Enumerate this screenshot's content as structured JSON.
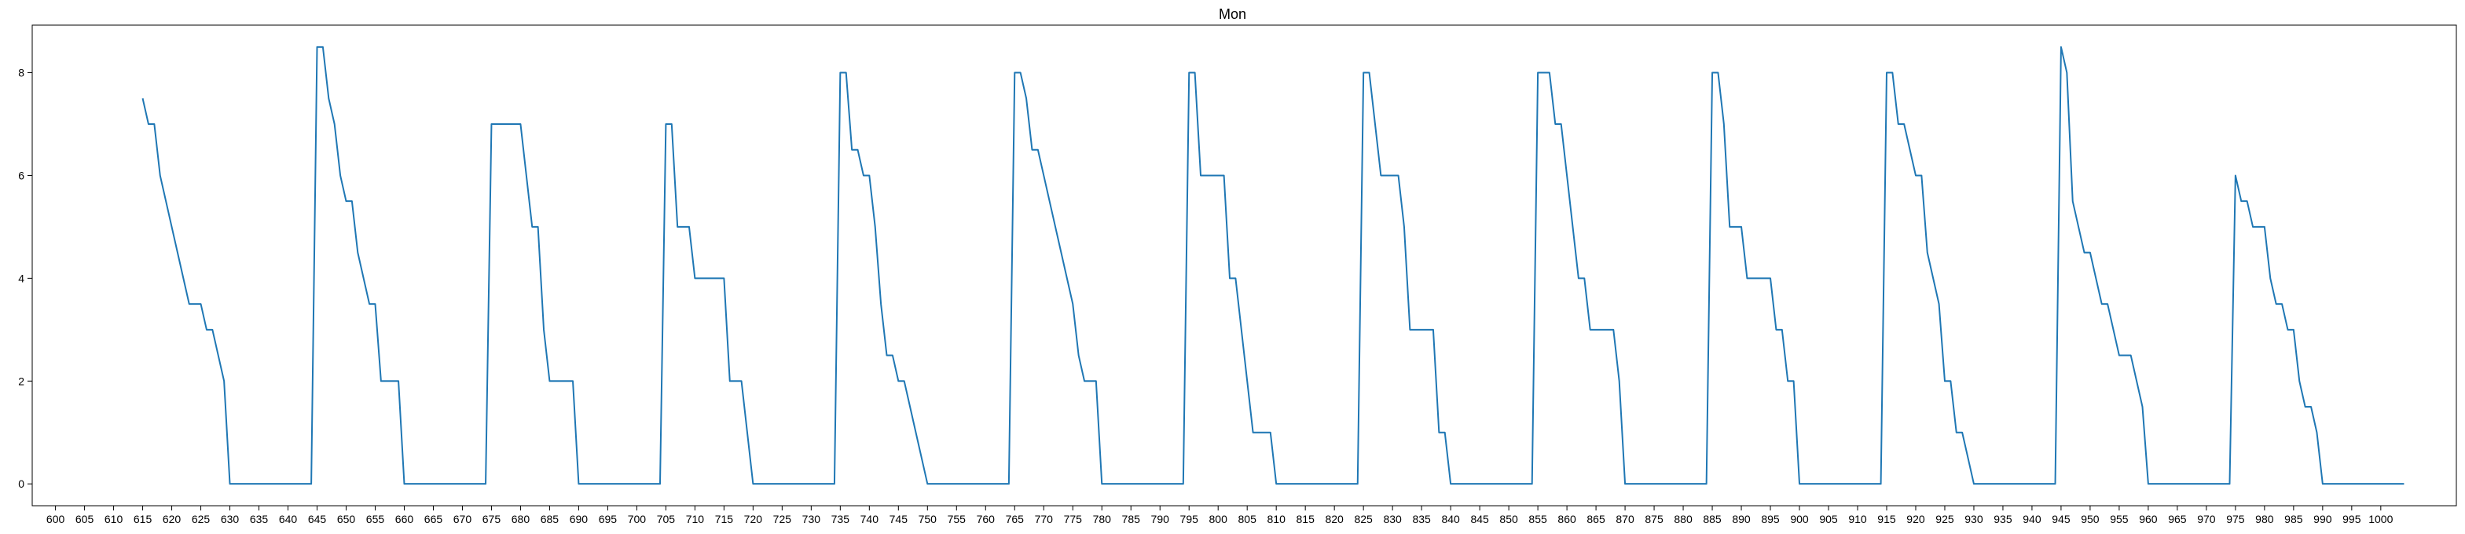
{
  "chart_data": {
    "type": "line",
    "title": "Mon",
    "xlabel": "",
    "ylabel": "",
    "xlim": [
      596,
      1013
    ],
    "ylim": [
      -0.425,
      8.925
    ],
    "xticks": [
      600,
      605,
      610,
      615,
      620,
      625,
      630,
      635,
      640,
      645,
      650,
      655,
      660,
      665,
      670,
      675,
      680,
      685,
      690,
      695,
      700,
      705,
      710,
      715,
      720,
      725,
      730,
      735,
      740,
      745,
      750,
      755,
      760,
      765,
      770,
      775,
      780,
      785,
      790,
      795,
      800,
      805,
      810,
      815,
      820,
      825,
      830,
      835,
      840,
      845,
      850,
      855,
      860,
      865,
      870,
      875,
      880,
      885,
      890,
      895,
      900,
      905,
      910,
      915,
      920,
      925,
      930,
      935,
      940,
      945,
      950,
      955,
      960,
      965,
      970,
      975,
      980,
      985,
      990,
      995,
      1000
    ],
    "yticks": [
      0,
      2,
      4,
      6,
      8
    ],
    "grid": false,
    "legend": "none",
    "series": [
      {
        "color": "#1f77b4",
        "x": [
          615,
          616,
          617,
          618,
          619,
          620,
          621,
          622,
          623,
          624,
          625,
          626,
          627,
          628,
          629,
          630,
          631,
          632,
          633,
          634,
          635,
          636,
          637,
          638,
          639,
          640,
          641,
          642,
          643,
          644,
          645,
          646,
          647,
          648,
          649,
          650,
          651,
          652,
          653,
          654,
          655,
          656,
          657,
          658,
          659,
          660,
          661,
          662,
          663,
          664,
          665,
          666,
          667,
          668,
          669,
          670,
          671,
          672,
          673,
          674,
          675,
          676,
          677,
          678,
          679,
          680,
          681,
          682,
          683,
          684,
          685,
          686,
          687,
          688,
          689,
          690,
          691,
          692,
          693,
          694,
          695,
          696,
          697,
          698,
          699,
          700,
          701,
          702,
          703,
          704,
          705,
          706,
          707,
          708,
          709,
          710,
          711,
          712,
          713,
          714,
          715,
          716,
          717,
          718,
          719,
          720,
          721,
          722,
          723,
          724,
          725,
          726,
          727,
          728,
          729,
          730,
          731,
          732,
          733,
          734,
          735,
          736,
          737,
          738,
          739,
          740,
          741,
          742,
          743,
          744,
          745,
          746,
          747,
          748,
          749,
          750,
          751,
          752,
          753,
          754,
          755,
          756,
          757,
          758,
          759,
          760,
          761,
          762,
          763,
          764,
          765,
          766,
          767,
          768,
          769,
          770,
          771,
          772,
          773,
          774,
          775,
          776,
          777,
          778,
          779,
          780,
          781,
          782,
          783,
          784,
          785,
          786,
          787,
          788,
          789,
          790,
          791,
          792,
          793,
          794,
          795,
          796,
          797,
          798,
          799,
          800,
          801,
          802,
          803,
          804,
          805,
          806,
          807,
          808,
          809,
          810,
          811,
          812,
          813,
          814,
          815,
          816,
          817,
          818,
          819,
          820,
          821,
          822,
          823,
          824,
          825,
          826,
          827,
          828,
          829,
          830,
          831,
          832,
          833,
          834,
          835,
          836,
          837,
          838,
          839,
          840,
          841,
          842,
          843,
          844,
          845,
          846,
          847,
          848,
          849,
          850,
          851,
          852,
          853,
          854,
          855,
          856,
          857,
          858,
          859,
          860,
          861,
          862,
          863,
          864,
          865,
          866,
          867,
          868,
          869,
          870,
          871,
          872,
          873,
          874,
          875,
          876,
          877,
          878,
          879,
          880,
          881,
          882,
          883,
          884,
          885,
          886,
          887,
          888,
          889,
          890,
          891,
          892,
          893,
          894,
          895,
          896,
          897,
          898,
          899,
          900,
          901,
          902,
          903,
          904,
          905,
          906,
          907,
          908,
          909,
          910,
          911,
          912,
          913,
          914,
          915,
          916,
          917,
          918,
          919,
          920,
          921,
          922,
          923,
          924,
          925,
          926,
          927,
          928,
          929,
          930,
          931,
          932,
          933,
          934,
          935,
          936,
          937,
          938,
          939,
          940,
          941,
          942,
          943,
          944,
          945,
          946,
          947,
          948,
          949,
          950,
          951,
          952,
          953,
          954,
          955,
          956,
          957,
          958,
          959,
          960,
          961,
          962,
          963,
          964,
          965,
          966,
          967,
          968,
          969,
          970,
          971,
          972,
          973,
          974,
          975,
          976,
          977,
          978,
          979,
          980,
          981,
          982,
          983,
          984,
          985,
          986,
          987,
          988,
          989,
          990,
          991,
          992,
          993,
          994,
          995,
          996,
          997,
          998,
          999,
          1000,
          1001,
          1002,
          1003,
          1004
        ],
        "y": [
          7.5,
          7,
          7,
          6,
          5.5,
          5,
          4.5,
          4,
          3.5,
          3.5,
          3.5,
          3,
          3,
          2.5,
          2,
          0,
          0,
          0,
          0,
          0,
          0,
          0,
          0,
          0,
          0,
          0,
          0,
          0,
          0,
          0,
          8.5,
          8.5,
          7.5,
          7,
          6,
          5.5,
          5.5,
          4.5,
          4,
          3.5,
          3.5,
          2,
          2,
          2,
          2,
          0,
          0,
          0,
          0,
          0,
          0,
          0,
          0,
          0,
          0,
          0,
          0,
          0,
          0,
          0,
          7,
          7,
          7,
          7,
          7,
          7,
          6,
          5,
          5,
          3,
          2,
          2,
          2,
          2,
          2,
          0,
          0,
          0,
          0,
          0,
          0,
          0,
          0,
          0,
          0,
          0,
          0,
          0,
          0,
          0,
          7,
          7,
          5,
          5,
          5,
          4,
          4,
          4,
          4,
          4,
          4,
          2,
          2,
          2,
          1,
          0,
          0,
          0,
          0,
          0,
          0,
          0,
          0,
          0,
          0,
          0,
          0,
          0,
          0,
          0,
          8,
          8,
          6.5,
          6.5,
          6,
          6,
          5,
          3.5,
          2.5,
          2.5,
          2,
          2,
          1.5,
          1,
          0.5,
          0,
          0,
          0,
          0,
          0,
          0,
          0,
          0,
          0,
          0,
          0,
          0,
          0,
          0,
          0,
          8,
          8,
          7.5,
          6.5,
          6.5,
          6,
          5.5,
          5,
          4.5,
          4,
          3.5,
          2.5,
          2,
          2,
          2,
          0,
          0,
          0,
          0,
          0,
          0,
          0,
          0,
          0,
          0,
          0,
          0,
          0,
          0,
          0,
          8,
          8,
          6,
          6,
          6,
          6,
          6,
          4,
          4,
          3,
          2,
          1,
          1,
          1,
          1,
          0,
          0,
          0,
          0,
          0,
          0,
          0,
          0,
          0,
          0,
          0,
          0,
          0,
          0,
          0,
          8,
          8,
          7,
          6,
          6,
          6,
          6,
          5,
          3,
          3,
          3,
          3,
          3,
          1,
          1,
          0,
          0,
          0,
          0,
          0,
          0,
          0,
          0,
          0,
          0,
          0,
          0,
          0,
          0,
          0,
          8,
          8,
          8,
          7,
          7,
          6,
          5,
          4,
          4,
          3,
          3,
          3,
          3,
          3,
          2,
          0,
          0,
          0,
          0,
          0,
          0,
          0,
          0,
          0,
          0,
          0,
          0,
          0,
          0,
          0,
          8,
          8,
          7,
          5,
          5,
          5,
          4,
          4,
          4,
          4,
          4,
          3,
          3,
          2,
          2,
          0,
          0,
          0,
          0,
          0,
          0,
          0,
          0,
          0,
          0,
          0,
          0,
          0,
          0,
          0,
          8,
          8,
          7,
          7,
          6.5,
          6,
          6,
          4.5,
          4,
          3.5,
          2,
          2,
          1,
          1,
          0.5,
          0,
          0,
          0,
          0,
          0,
          0,
          0,
          0,
          0,
          0,
          0,
          0,
          0,
          0,
          0,
          8.5,
          8,
          5.5,
          5,
          4.5,
          4.5,
          4,
          3.5,
          3.5,
          3,
          2.5,
          2.5,
          2.5,
          2,
          1.5,
          0,
          0,
          0,
          0,
          0,
          0,
          0,
          0,
          0,
          0,
          0,
          0,
          0,
          0,
          0,
          6,
          5.5,
          5.5,
          5,
          5,
          5,
          4,
          3.5,
          3.5,
          3,
          3,
          2,
          1.5,
          1.5,
          1,
          0,
          0,
          0,
          0,
          0,
          0,
          0,
          0,
          0,
          0,
          0,
          0,
          0,
          0,
          0
        ]
      }
    ]
  }
}
